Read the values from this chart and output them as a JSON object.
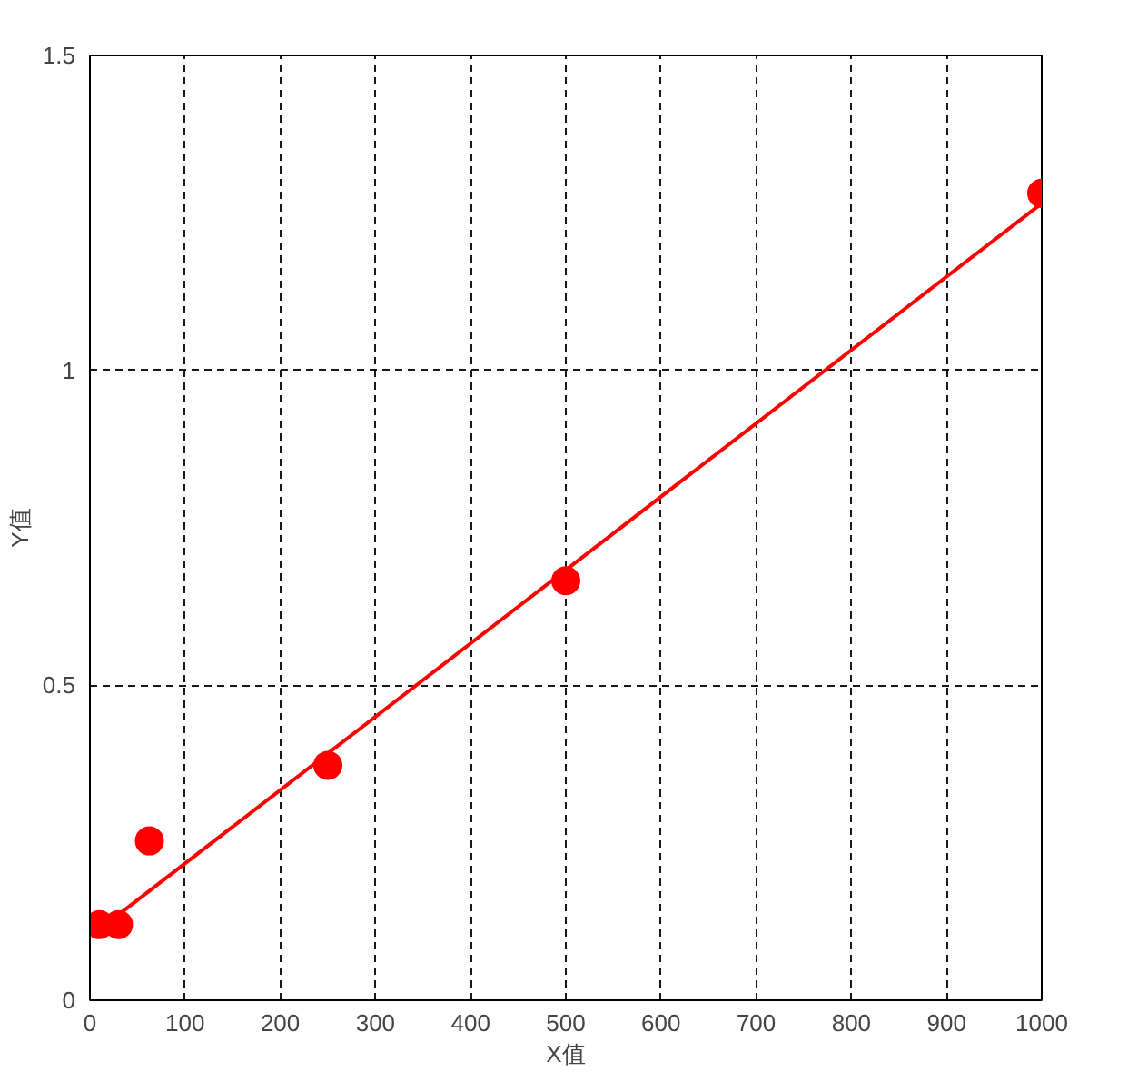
{
  "chart_data": {
    "type": "scatter",
    "xlabel": "X值",
    "ylabel": "Y值",
    "xlim": [
      0,
      1000
    ],
    "ylim": [
      0,
      1.5
    ],
    "xticks": [
      0,
      100,
      200,
      300,
      400,
      500,
      600,
      700,
      800,
      900,
      1000
    ],
    "yticks": [
      0,
      0.5,
      1,
      1.5
    ],
    "grid": true,
    "series": [
      {
        "marker": "circle",
        "color": "#ff0000",
        "x": [
          10,
          30,
          62.5,
          250,
          500,
          1000
        ],
        "values": [
          0.12,
          0.12,
          0.253,
          0.373,
          0.666,
          1.281
        ]
      },
      {
        "type": "line",
        "marker": "none",
        "color": "#ff0000",
        "x": [
          25,
          1000
        ],
        "values": [
          0.13,
          1.265
        ]
      }
    ]
  }
}
